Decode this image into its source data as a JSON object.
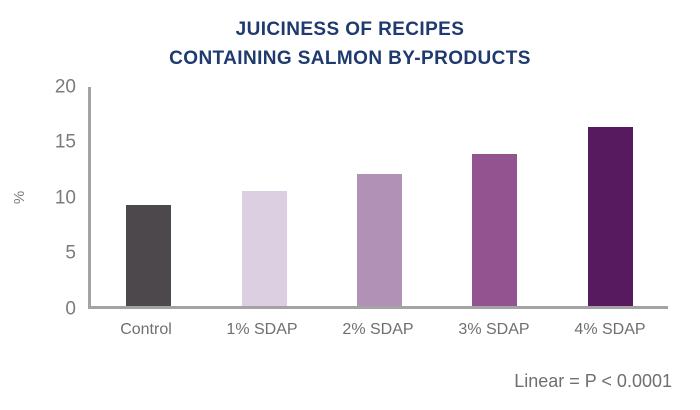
{
  "title": {
    "line1": "JUICINESS OF RECIPES",
    "line2": "CONTAINING SALMON BY-PRODUCTS"
  },
  "annotation": "Linear = P < 0.0001",
  "colors": {
    "title": "#1e3a6e",
    "axis": "#a3a3a3",
    "tick_label": "#7b7b7b",
    "category_label": "#6f6f6f"
  },
  "chart_data": {
    "type": "bar",
    "title": "JUICINESS OF RECIPES CONTAINING SALMON BY-PRODUCTS",
    "categories": [
      "Control",
      "1% SDAP",
      "2% SDAP",
      "3% SDAP",
      "4% SDAP"
    ],
    "values": [
      9.2,
      10.5,
      12.0,
      13.9,
      16.3
    ],
    "bar_colors": [
      "#4c484c",
      "#dccfe2",
      "#b191b6",
      "#935390",
      "#571a5e"
    ],
    "xlabel": "",
    "ylabel": "%",
    "ylim": [
      0,
      20
    ],
    "yticks": [
      0,
      5,
      10,
      15,
      20
    ],
    "grid": false,
    "legend": false,
    "annotation": "Linear = P < 0.0001"
  }
}
